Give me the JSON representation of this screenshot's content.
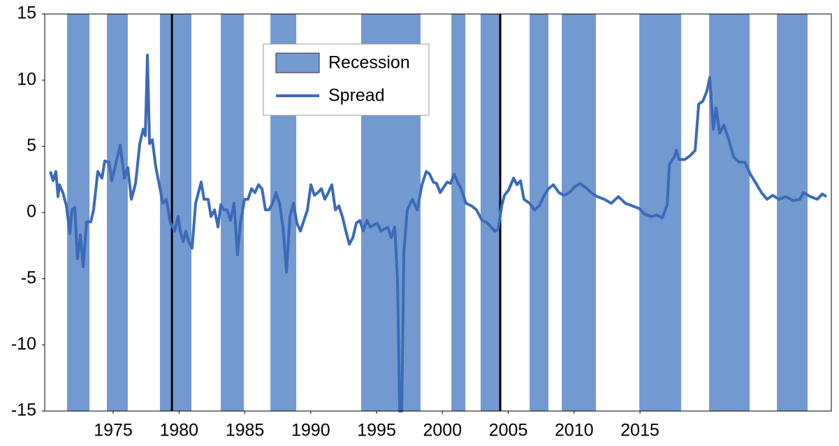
{
  "chart_data": {
    "type": "line",
    "xlim": [
      1969.8,
      2029.53
    ],
    "xticks": [
      1975,
      1980,
      1985,
      1990,
      1995,
      2000,
      2005,
      2010,
      2015
    ],
    "ylim": [
      -15,
      15
    ],
    "yticks": [
      -15,
      -10,
      -5,
      0,
      5,
      10,
      15
    ],
    "legend": "top-center",
    "recessions": {
      "name": "Recession",
      "color": "#7399d1",
      "periods": [
        [
          1971.5,
          1973.2
        ],
        [
          1974.52,
          1976.11
        ],
        [
          1978.55,
          1980.94
        ],
        [
          1983.17,
          1984.92
        ],
        [
          1986.94,
          1988.9
        ],
        [
          1993.83,
          1998.34
        ],
        [
          2000.68,
          2001.74
        ],
        [
          2002.9,
          2004.39
        ],
        [
          2006.62,
          2008.05
        ],
        [
          2009.06,
          2011.66
        ],
        [
          2014.95,
          2018.13
        ],
        [
          2020.25,
          2023.33
        ],
        [
          2025.4,
          2027.73
        ]
      ]
    },
    "vlines": [
      1979.46,
      2004.39
    ],
    "vline_color": "#000000",
    "x": [
      1970.23,
      1970.44,
      1970.65,
      1970.81,
      1970.92,
      1971.18,
      1971.45,
      1971.71,
      1971.87,
      1972.08,
      1972.29,
      1972.51,
      1972.72,
      1972.98,
      1973.3,
      1973.51,
      1973.83,
      1974.15,
      1974.36,
      1974.68,
      1974.89,
      1975.16,
      1975.53,
      1975.85,
      1976.11,
      1976.38,
      1976.7,
      1977.02,
      1977.28,
      1977.44,
      1977.6,
      1977.76,
      1977.97,
      1978.24,
      1978.5,
      1978.77,
      1979.03,
      1979.35,
      1979.67,
      1979.93,
      1980.09,
      1980.31,
      1980.52,
      1980.73,
      1980.99,
      1981.26,
      1981.47,
      1981.68,
      1981.9,
      1982.21,
      1982.43,
      1982.69,
      1982.96,
      1983.17,
      1983.38,
      1983.65,
      1983.91,
      1984.18,
      1984.44,
      1984.66,
      1984.97,
      1985.24,
      1985.5,
      1985.77,
      1986.03,
      1986.3,
      1986.56,
      1986.83,
      1987.1,
      1987.36,
      1987.63,
      1987.89,
      1988.16,
      1988.42,
      1988.69,
      1988.95,
      1989.22,
      1989.48,
      1989.75,
      1990.01,
      1990.28,
      1990.54,
      1990.81,
      1991.07,
      1991.34,
      1991.6,
      1991.87,
      1992.14,
      1992.4,
      1992.67,
      1992.93,
      1993.2,
      1993.46,
      1993.73,
      1993.99,
      1994.26,
      1994.52,
      1995.05,
      1995.32,
      1995.85,
      1996.11,
      1996.38,
      1996.59,
      1996.75,
      1996.91,
      1997.07,
      1997.33,
      1997.71,
      1998.08,
      1998.45,
      1998.77,
      1999.03,
      1999.3,
      1999.56,
      1999.83,
      2000.09,
      2000.36,
      2000.62,
      2000.89,
      2001.15,
      2001.42,
      2001.79,
      2002.21,
      2002.59,
      2003.01,
      2003.43,
      2003.7,
      2003.97,
      2004.23,
      2004.5,
      2004.71,
      2005.03,
      2005.4,
      2005.66,
      2005.93,
      2006.19,
      2006.62,
      2006.99,
      2007.36,
      2007.68,
      2008.05,
      2008.42,
      2008.85,
      2009.22,
      2009.64,
      2010.01,
      2010.44,
      2010.86,
      2011.29,
      2011.76,
      2012.29,
      2012.82,
      2013.36,
      2013.89,
      2014.42,
      2014.95,
      2015.32,
      2015.85,
      2016.27,
      2016.7,
      2017.07,
      2017.23,
      2017.6,
      2017.76,
      2017.97,
      2018.4,
      2018.82,
      2019.19,
      2019.46,
      2019.77,
      2020.09,
      2020.3,
      2020.57,
      2020.78,
      2021.05,
      2021.37,
      2021.74,
      2022.11,
      2022.53,
      2022.96,
      2023.38,
      2023.81,
      2024.23,
      2024.65,
      2025.08,
      2025.56,
      2026.09,
      2026.62,
      2027.15,
      2027.41,
      2027.94,
      2028.47,
      2028.84,
      2029.16
    ],
    "series": [
      {
        "name": "Spread",
        "color": "#3b6ab8",
        "values": [
          3.1,
          2.4,
          3.1,
          1.2,
          2.1,
          1.5,
          0.5,
          -1.6,
          0.2,
          0.4,
          -3.5,
          -1.7,
          -4.1,
          -0.7,
          -0.7,
          0.2,
          3.1,
          2.6,
          3.9,
          3.8,
          2.4,
          3.5,
          5.1,
          2.6,
          3.4,
          1.0,
          2.2,
          5.2,
          6.3,
          5.8,
          11.9,
          5.2,
          5.5,
          3.4,
          2.1,
          0.7,
          1.0,
          -0.8,
          -1.4,
          -0.3,
          -1.4,
          -2.2,
          -1.4,
          -2.2,
          -2.7,
          0.7,
          1.5,
          2.3,
          1.0,
          1.0,
          -0.3,
          0.2,
          -1.1,
          0.6,
          0.2,
          0.2,
          -0.6,
          0.7,
          -3.2,
          -0.8,
          1.0,
          1.0,
          1.8,
          1.5,
          2.1,
          1.8,
          0.2,
          0.2,
          0.7,
          1.5,
          0.7,
          -1.1,
          -4.5,
          -0.3,
          0.7,
          -0.8,
          -1.4,
          -0.6,
          0.2,
          2.1,
          1.3,
          1.5,
          1.8,
          1.0,
          1.5,
          2.1,
          0.2,
          0.5,
          -0.3,
          -1.4,
          -2.4,
          -1.9,
          -0.8,
          -0.6,
          -1.4,
          -0.6,
          -1.1,
          -0.8,
          -1.4,
          -1.1,
          -1.9,
          -1.1,
          -5.1,
          -15,
          -15,
          -3.0,
          0.2,
          1.0,
          0.2,
          2.1,
          3.1,
          2.9,
          2.3,
          2.2,
          1.5,
          1.9,
          2.3,
          2.2,
          2.9,
          2.3,
          1.8,
          0.7,
          0.5,
          0.2,
          -0.6,
          -0.8,
          -1.1,
          -1.4,
          -1.3,
          0.5,
          1.3,
          1.7,
          2.6,
          2.1,
          2.4,
          1.0,
          0.7,
          0.2,
          0.5,
          1.2,
          1.8,
          2.1,
          1.5,
          1.3,
          1.5,
          1.9,
          2.2,
          1.9,
          1.5,
          1.2,
          1.0,
          0.7,
          1.2,
          0.7,
          0.5,
          0.3,
          -0.1,
          -0.3,
          -0.2,
          -0.4,
          0.6,
          3.6,
          4.2,
          4.7,
          4.0,
          4.0,
          4.3,
          4.7,
          8.2,
          8.4,
          9.2,
          10.2,
          6.3,
          7.9,
          6.0,
          6.6,
          5.5,
          4.2,
          3.8,
          3.8,
          2.9,
          2.2,
          1.5,
          1.0,
          1.3,
          1.0,
          1.2,
          0.9,
          1.0,
          1.5,
          1.2,
          1.0,
          1.4,
          1.2
        ]
      }
    ]
  }
}
